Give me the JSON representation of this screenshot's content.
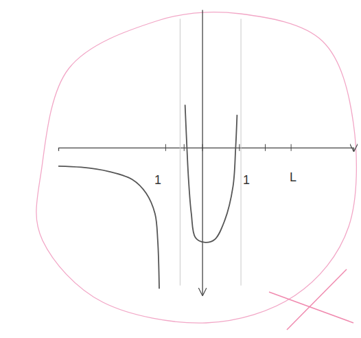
{
  "chart_data": {
    "type": "line",
    "xlim": [
      -7.8,
      8.2
    ],
    "ylim": [
      -8,
      7.5
    ],
    "xticks": [
      -2,
      -1,
      0,
      2,
      3.4,
      4.8
    ],
    "tick_labels": false,
    "grid": false,
    "series": [
      {
        "type": "line",
        "color": "#c8c8c8",
        "line_style": "solid",
        "x": [
          -1.2,
          -1.2
        ],
        "values": [
          7,
          -7.5
        ]
      },
      {
        "type": "line",
        "color": "#c8c8c8",
        "line_style": "solid",
        "x": [
          2.1,
          2.1
        ],
        "values": [
          7,
          -7.5
        ]
      },
      {
        "type": "line",
        "color": "#555555",
        "line_style": "solid",
        "x": [
          -8.22,
          -6.56,
          -5.07,
          -3.78,
          -3.04,
          -2.56,
          -2.41,
          -2.33
        ],
        "values": [
          -1.0,
          -1.07,
          -1.3,
          -1.74,
          -2.48,
          -3.59,
          -5.07,
          -7.67
        ]
      },
      {
        "type": "line",
        "color": "#555555",
        "line_style": "solid",
        "x": [
          -0.93,
          -0.85,
          -0.74,
          -0.59,
          -0.37,
          0.11,
          0.67,
          1.22,
          1.67,
          1.81,
          1.89
        ],
        "values": [
          2.33,
          0.48,
          -1.74,
          -3.59,
          -4.89,
          -5.15,
          -5.0,
          -3.96,
          -2.11,
          -0.07,
          1.78
        ]
      }
    ],
    "annotations": [
      {
        "text": "1",
        "x": -2.4,
        "y": -1.8
      },
      {
        "text": "1",
        "x": 2.4,
        "y": -1.8
      },
      {
        "text": "L",
        "x": 4.93,
        "y": -1.67
      }
    ]
  }
}
